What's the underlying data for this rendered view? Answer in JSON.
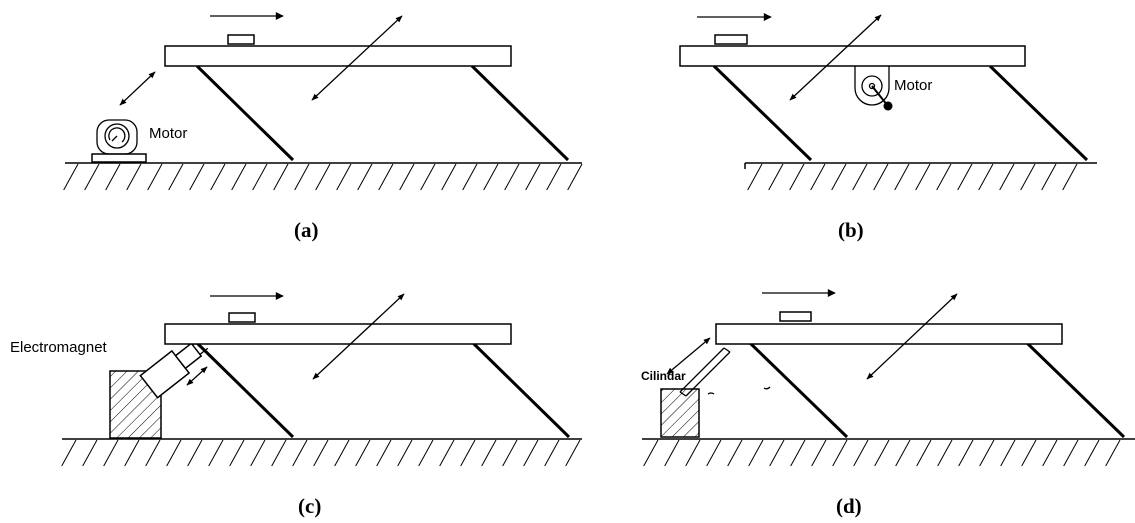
{
  "panels": {
    "a": {
      "caption": "(a)",
      "device_label": "Motor"
    },
    "b": {
      "caption": "(b)",
      "device_label": "Motor"
    },
    "c": {
      "caption": "(c)",
      "device_label": "Electromagnet"
    },
    "d": {
      "caption": "(d)",
      "device_label": "Cilindar"
    }
  }
}
